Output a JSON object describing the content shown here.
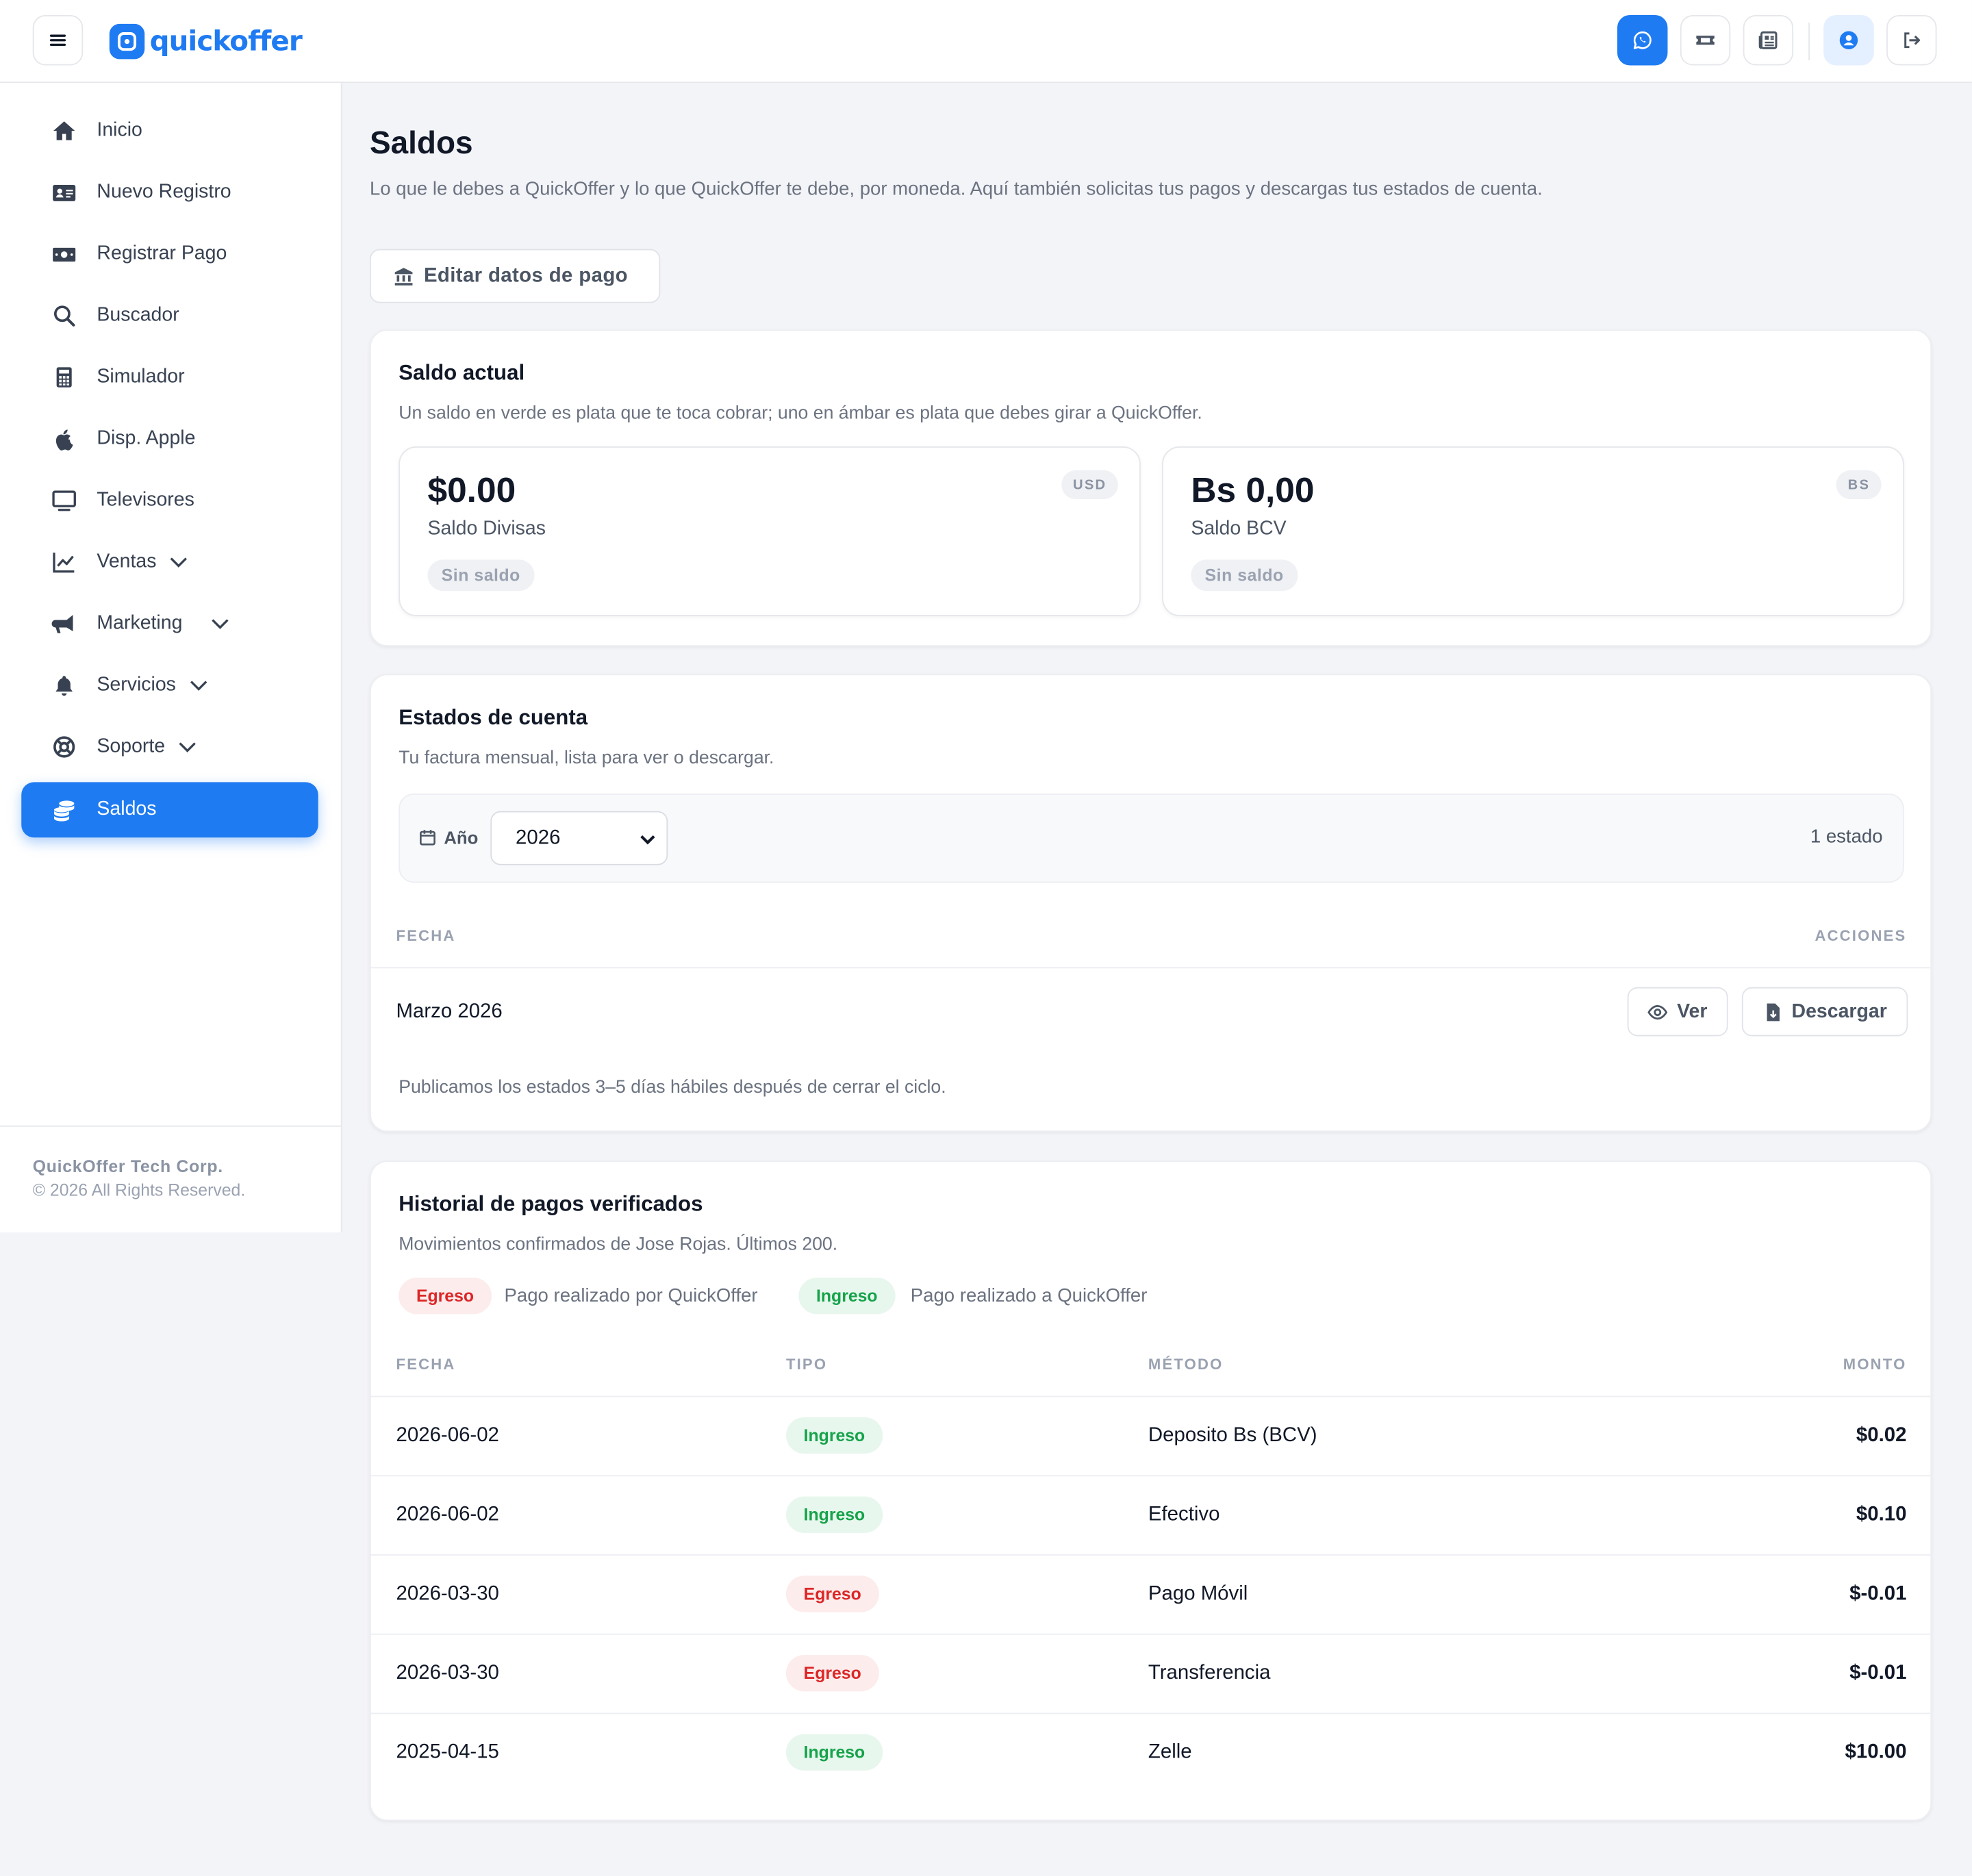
{
  "app": {
    "brand": "quickoffer"
  },
  "sidebar": {
    "items": [
      {
        "label": "Inicio",
        "icon": "home-icon"
      },
      {
        "label": "Nuevo Registro",
        "icon": "id-card-icon"
      },
      {
        "label": "Registrar Pago",
        "icon": "money-bill-icon"
      },
      {
        "label": "Buscador",
        "icon": "search-icon"
      },
      {
        "label": "Simulador",
        "icon": "calculator-icon"
      },
      {
        "label": "Disp. Apple",
        "icon": "apple-icon"
      },
      {
        "label": "Televisores",
        "icon": "tv-icon"
      },
      {
        "label": "Ventas",
        "icon": "chart-line-icon"
      },
      {
        "label": "Marketing",
        "icon": "megaphone-icon"
      },
      {
        "label": "Servicios",
        "icon": "bell-icon"
      },
      {
        "label": "Soporte",
        "icon": "lifebuoy-icon"
      },
      {
        "label": "Saldos",
        "icon": "coins-icon"
      }
    ],
    "footer": {
      "company": "QuickOffer Tech Corp.",
      "rights": "© 2026 All Rights Reserved."
    }
  },
  "header_icons": [
    "menu-icon",
    "whatsapp-icon",
    "ticket-icon",
    "newspaper-icon",
    "user-circle-icon",
    "logout-icon"
  ],
  "page": {
    "title": "Saldos",
    "subtitle": "Lo que le debes a QuickOffer y lo que QuickOffer te debe, por moneda. Aquí también solicitas tus pagos y descargas tus estados de cuenta.",
    "edit_button": "Editar datos de pago"
  },
  "balance": {
    "title": "Saldo actual",
    "subtitle": "Un saldo en verde es plata que te toca cobrar; uno en ámbar es plata que debes girar a QuickOffer.",
    "usd": {
      "amount": "$0.00",
      "label": "Saldo Divisas",
      "status": "Sin saldo",
      "currency": "USD"
    },
    "bs": {
      "amount": "Bs 0,00",
      "label": "Saldo BCV",
      "status": "Sin saldo",
      "currency": "BS"
    }
  },
  "statements": {
    "title": "Estados de cuenta",
    "subtitle": "Tu factura mensual, lista para ver o descargar.",
    "year_label": "Año",
    "year_value": "2026",
    "count": "1 estado",
    "col_date": "FECHA",
    "col_actions": "ACCIONES",
    "rows": [
      {
        "date": "Marzo 2026",
        "view": "Ver",
        "download": "Descargar"
      }
    ],
    "note": "Publicamos los estados 3–5 días hábiles después de cerrar el ciclo."
  },
  "history": {
    "title": "Historial de pagos verificados",
    "subtitle": "Movimientos confirmados de Jose Rojas. Últimos 200.",
    "legend": [
      {
        "badge": "Egreso",
        "text": "Pago realizado por QuickOffer"
      },
      {
        "badge": "Ingreso",
        "text": "Pago realizado a QuickOffer"
      }
    ],
    "columns": [
      "FECHA",
      "TIPO",
      "MÉTODO",
      "MONTO"
    ],
    "rows": [
      {
        "date": "2026-06-02",
        "type": "Ingreso",
        "method": "Deposito Bs (BCV)",
        "amount": "$0.02"
      },
      {
        "date": "2026-06-02",
        "type": "Ingreso",
        "method": "Efectivo",
        "amount": "$0.10"
      },
      {
        "date": "2026-03-30",
        "type": "Egreso",
        "method": "Pago Móvil",
        "amount": "$-0.01"
      },
      {
        "date": "2026-03-30",
        "type": "Egreso",
        "method": "Transferencia",
        "amount": "$-0.01"
      },
      {
        "date": "2025-04-15",
        "type": "Ingreso",
        "method": "Zelle",
        "amount": "$10.00"
      }
    ]
  },
  "colors": {
    "accent": "#1f7bf2",
    "egreso": "#dc2626",
    "ingreso": "#16a34a"
  }
}
